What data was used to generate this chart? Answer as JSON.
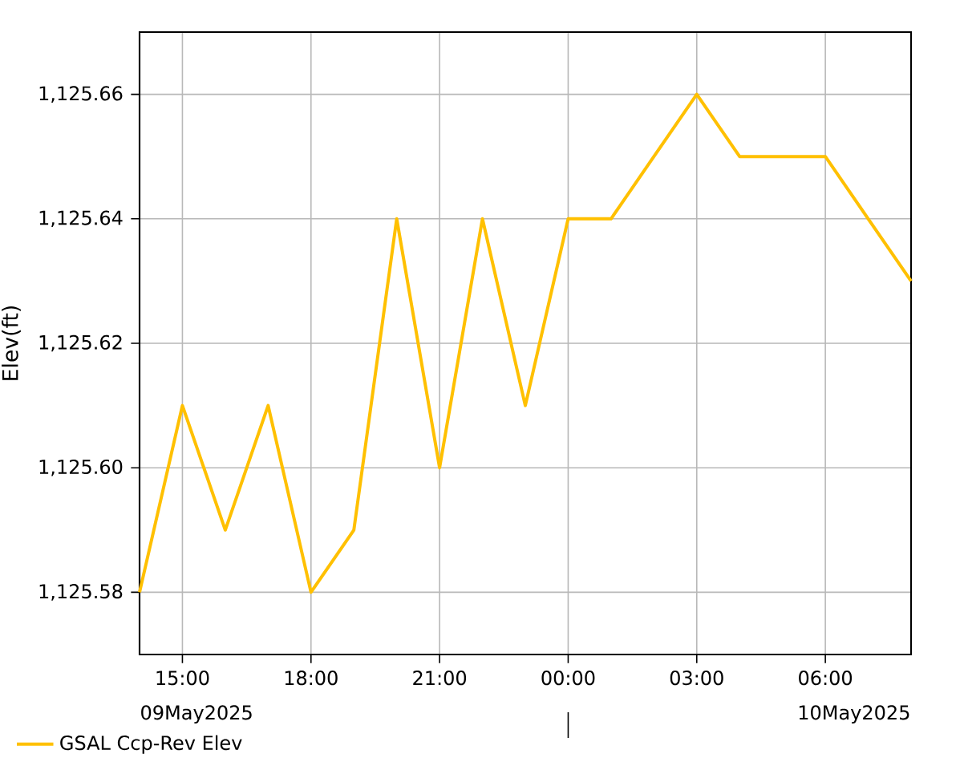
{
  "chart_data": {
    "type": "line",
    "ylabel": "Elev(ft)",
    "x": [
      "2025-05-09T14:00",
      "2025-05-09T15:00",
      "2025-05-09T16:00",
      "2025-05-09T17:00",
      "2025-05-09T18:00",
      "2025-05-09T19:00",
      "2025-05-09T20:00",
      "2025-05-09T21:00",
      "2025-05-09T22:00",
      "2025-05-09T23:00",
      "2025-05-10T00:00",
      "2025-05-10T01:00",
      "2025-05-10T02:00",
      "2025-05-10T03:00",
      "2025-05-10T04:00",
      "2025-05-10T05:00",
      "2025-05-10T06:00",
      "2025-05-10T07:00",
      "2025-05-10T08:00"
    ],
    "series": [
      {
        "name": "GSAL Ccp-Rev Elev",
        "color": "#ffc000",
        "values": [
          1125.58,
          1125.61,
          1125.59,
          1125.61,
          1125.58,
          1125.59,
          1125.64,
          1125.6,
          1125.64,
          1125.61,
          1125.64,
          1125.64,
          1125.65,
          1125.66,
          1125.65,
          1125.65,
          1125.65,
          1125.64,
          1125.63
        ]
      }
    ],
    "xlim": [
      "2025-05-09T14:00",
      "2025-05-10T08:00"
    ],
    "xticks": [
      {
        "value": "2025-05-09T15:00",
        "label": "15:00"
      },
      {
        "value": "2025-05-09T18:00",
        "label": "18:00"
      },
      {
        "value": "2025-05-09T21:00",
        "label": "21:00"
      },
      {
        "value": "2025-05-10T00:00",
        "label": "00:00"
      },
      {
        "value": "2025-05-10T03:00",
        "label": "03:00"
      },
      {
        "value": "2025-05-10T06:00",
        "label": "06:00"
      }
    ],
    "ylim": [
      1125.57,
      1125.67
    ],
    "yticks": [
      {
        "value": 1125.58,
        "label": "1,125.58"
      },
      {
        "value": 1125.6,
        "label": "1,125.60"
      },
      {
        "value": 1125.62,
        "label": "1,125.62"
      },
      {
        "value": 1125.64,
        "label": "1,125.64"
      },
      {
        "value": 1125.66,
        "label": "1,125.66"
      }
    ],
    "annotations": [
      "09May2025",
      "10May2025"
    ],
    "grid": true,
    "legend": "bottom left",
    "marker": "none",
    "line_style": "solid"
  }
}
